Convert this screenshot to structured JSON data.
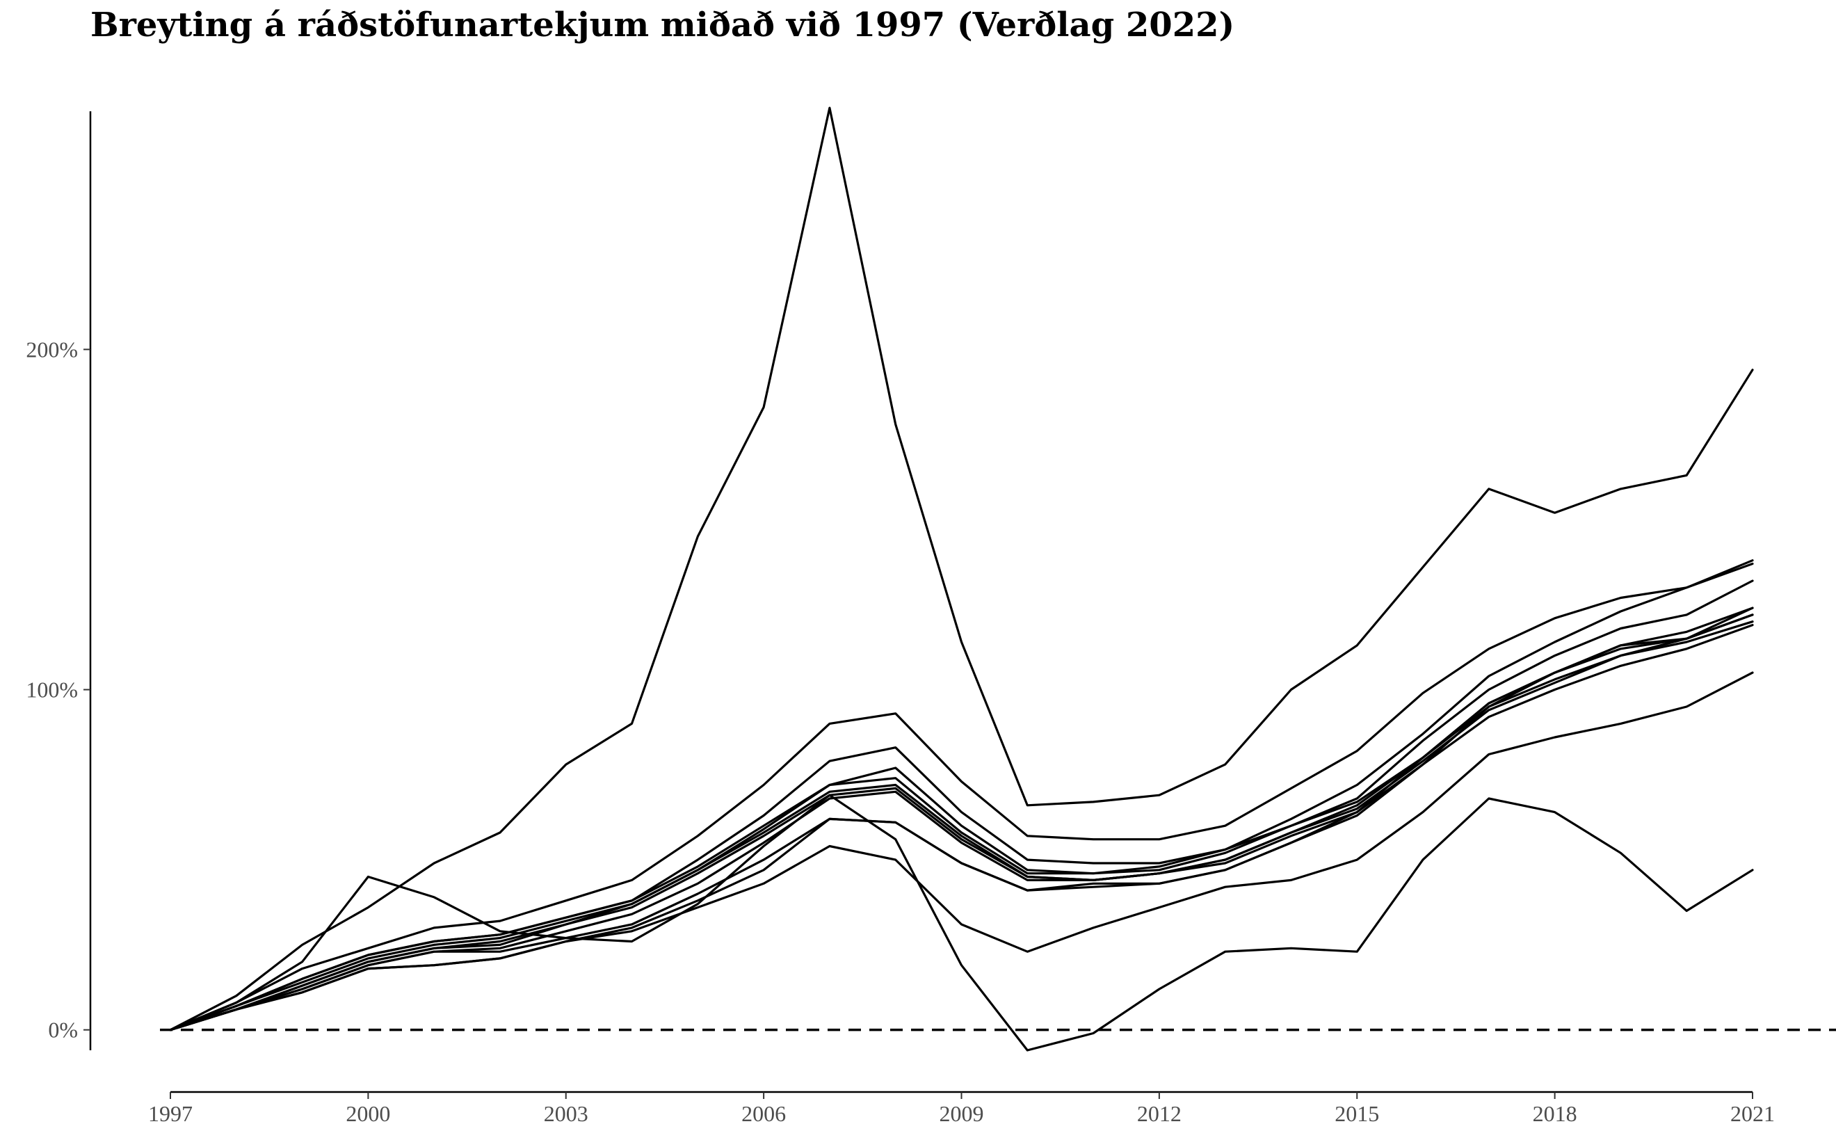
{
  "chart_data": {
    "type": "line",
    "title": "Breyting á ráðstöfunartekjum miðað við 1997 (Verðlag 2022)",
    "xlabel": "",
    "ylabel": "",
    "x": [
      1997,
      1998,
      1999,
      2000,
      2001,
      2002,
      2003,
      2004,
      2005,
      2006,
      2007,
      2008,
      2009,
      2010,
      2011,
      2012,
      2013,
      2014,
      2015,
      2016,
      2017,
      2018,
      2019,
      2020,
      2021
    ],
    "xlim": [
      1997,
      2021
    ],
    "ylim": [
      -6,
      270
    ],
    "x_ticks": [
      1997,
      2000,
      2003,
      2006,
      2009,
      2012,
      2015,
      2018,
      2021
    ],
    "y_ticks": [
      0,
      100,
      200
    ],
    "y_tick_labels": [
      "0%",
      "100%",
      "200%"
    ],
    "reference_line": {
      "y": 0,
      "style": "dashed"
    },
    "grid": false,
    "legend": "none",
    "line_color": "#000000",
    "series": [
      {
        "values": [
          0,
          10,
          25,
          36,
          49,
          58,
          78,
          90,
          145,
          183,
          271,
          178,
          114,
          66,
          67,
          69,
          78,
          100,
          113,
          136,
          159,
          152,
          159,
          163,
          194
        ]
      },
      {
        "values": [
          0,
          7,
          15,
          22,
          26,
          28,
          33,
          38,
          50,
          63,
          79,
          83,
          64,
          50,
          49,
          49,
          53,
          62,
          72,
          87,
          104,
          114,
          123,
          130,
          138
        ]
      },
      {
        "values": [
          0,
          7,
          15,
          22,
          26,
          28,
          33,
          38,
          48,
          60,
          72,
          77,
          60,
          47,
          46,
          47,
          52,
          60,
          68,
          85,
          100,
          110,
          118,
          122,
          132
        ]
      },
      {
        "values": [
          0,
          8,
          18,
          24,
          30,
          32,
          38,
          44,
          57,
          72,
          90,
          93,
          73,
          57,
          56,
          56,
          60,
          71,
          82,
          99,
          112,
          121,
          127,
          130,
          137
        ]
      },
      {
        "values": [
          0,
          7,
          14,
          21,
          25,
          27,
          32,
          37,
          47,
          59,
          72,
          74,
          58,
          46,
          46,
          48,
          53,
          60,
          67,
          80,
          96,
          105,
          113,
          117,
          124
        ]
      },
      {
        "values": [
          0,
          6,
          13,
          20,
          24,
          26,
          31,
          37,
          47,
          58,
          70,
          72,
          57,
          45,
          44,
          46,
          50,
          58,
          66,
          80,
          95,
          103,
          110,
          115,
          122
        ]
      },
      {
        "values": [
          0,
          6,
          13,
          20,
          24,
          25,
          31,
          36,
          46,
          57,
          69,
          71,
          56,
          45,
          44,
          46,
          50,
          58,
          65,
          79,
          94,
          102,
          110,
          114,
          120
        ]
      },
      {
        "values": [
          0,
          6,
          12,
          19,
          23,
          24,
          29,
          34,
          43,
          55,
          68,
          70,
          55,
          44,
          44,
          46,
          49,
          57,
          64,
          78,
          92,
          100,
          107,
          112,
          119
        ]
      },
      {
        "values": [
          0,
          6,
          12,
          19,
          23,
          23,
          27,
          31,
          40,
          50,
          62,
          61,
          49,
          41,
          42,
          43,
          47,
          55,
          63,
          78,
          95,
          105,
          112,
          115,
          124
        ]
      },
      {
        "values": [
          0,
          6,
          11,
          18,
          19,
          21,
          26,
          30,
          38,
          47,
          62,
          61,
          49,
          41,
          43,
          43,
          47,
          55,
          64,
          80,
          96,
          105,
          113,
          115,
          122
        ]
      },
      {
        "values": [
          0,
          6,
          11,
          18,
          19,
          21,
          26,
          29,
          36,
          43,
          54,
          50,
          31,
          23,
          30,
          36,
          42,
          44,
          50,
          64,
          81,
          86,
          90,
          95,
          105
        ]
      },
      {
        "values": [
          0,
          8,
          20,
          45,
          39,
          29,
          27,
          26,
          37,
          54,
          69,
          56,
          19,
          -6,
          -1,
          12,
          23,
          24,
          23,
          50,
          68,
          64,
          52,
          35,
          47
        ]
      }
    ]
  }
}
